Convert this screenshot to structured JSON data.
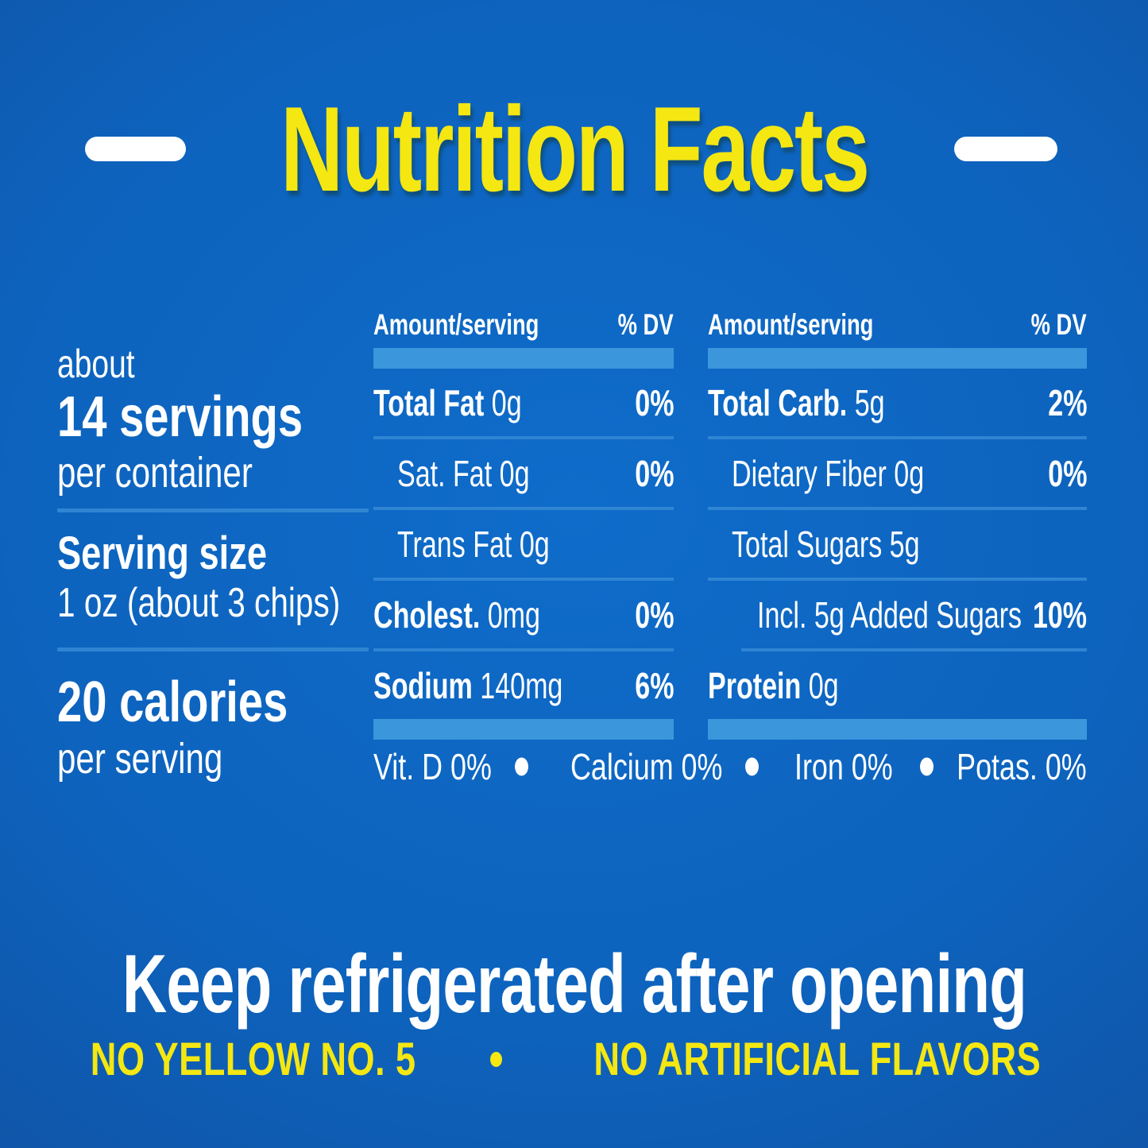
{
  "title": {
    "text": "Nutrition Facts"
  },
  "colors": {
    "background_center": "#0f6cca",
    "background_edge": "#123e84",
    "accent_yellow": "#f4e712",
    "text_white": "#ffffff",
    "bar_blue": "#3c96dc",
    "divider_blue": "#2f85d2"
  },
  "servings": {
    "about": "about",
    "count": "14 servings",
    "per": "per container"
  },
  "serving_size": {
    "label": "Serving size",
    "value": "1 oz (about 3 chips)"
  },
  "calories": {
    "value": "20 calories",
    "per": "per serving"
  },
  "table": {
    "header": {
      "amount": "Amount/serving",
      "dv": "% DV"
    },
    "mid": [
      {
        "bold": "Total Fat",
        "rest": " 0g",
        "dv": "0%"
      },
      {
        "bold": "",
        "rest": "Sat. Fat 0g",
        "dv": "0%"
      },
      {
        "bold": "",
        "rest": "Trans Fat 0g",
        "dv": ""
      },
      {
        "bold": "Cholest.",
        "rest": " 0mg",
        "dv": "0%"
      },
      {
        "bold": "Sodium",
        "rest": " 140mg",
        "dv": "6%"
      }
    ],
    "right": [
      {
        "bold": "Total Carb.",
        "rest": " 5g",
        "dv": "2%"
      },
      {
        "bold": "",
        "rest": "Dietary Fiber 0g",
        "dv": "0%"
      },
      {
        "bold": "",
        "rest": "Total Sugars 5g",
        "dv": ""
      },
      {
        "bold": "",
        "rest": "Incl. 5g Added Sugars",
        "dv": "10%"
      },
      {
        "bold": "Protein",
        "rest": " 0g",
        "dv": ""
      }
    ]
  },
  "micronutrients": {
    "items": [
      "Vit. D 0%",
      "Calcium 0%",
      "Iron 0%",
      "Potas. 0%"
    ]
  },
  "footer": {
    "main": "Keep refrigerated after opening",
    "sub_left": "NO YELLOW NO. 5",
    "sub_right": "NO ARTIFICIAL FLAVORS"
  }
}
